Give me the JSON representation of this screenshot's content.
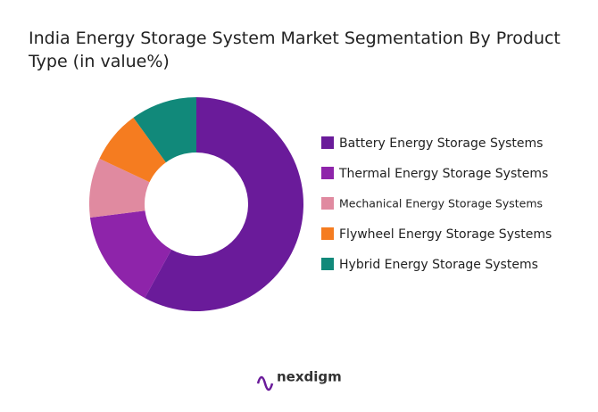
{
  "chart_data": {
    "type": "donut",
    "title": "India Energy Storage System Market Segmentation By Product Type (in value%)",
    "categories": [
      "Battery Energy Storage Systems",
      "Thermal Energy Storage Systems",
      "Mechanical Energy Storage Systems",
      "Flywheel Energy Storage Systems",
      "Hybrid Energy Storage Systems"
    ],
    "values": [
      58,
      15,
      9,
      8,
      10
    ],
    "colors": [
      "#6a1b9a",
      "#8e24aa",
      "#e08aa0",
      "#f57c20",
      "#11897a"
    ],
    "legend": "right"
  },
  "footer": {
    "brand": "nexdigm"
  }
}
